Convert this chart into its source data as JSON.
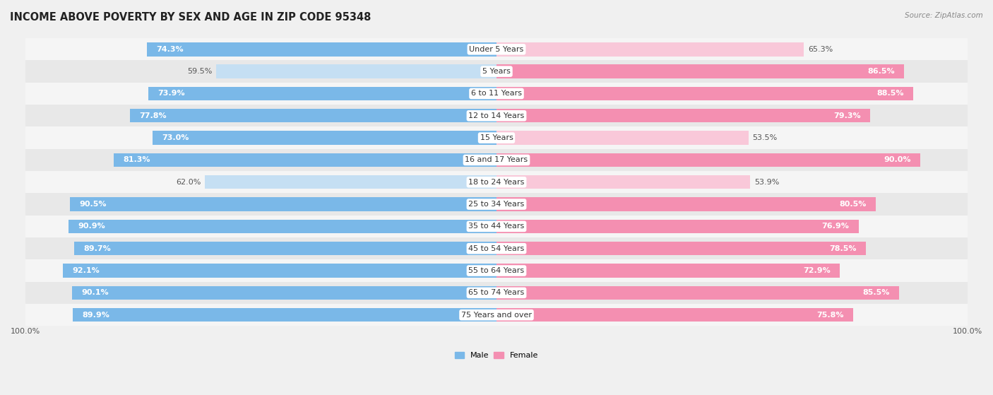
{
  "title": "INCOME ABOVE POVERTY BY SEX AND AGE IN ZIP CODE 95348",
  "source": "Source: ZipAtlas.com",
  "categories": [
    "Under 5 Years",
    "5 Years",
    "6 to 11 Years",
    "12 to 14 Years",
    "15 Years",
    "16 and 17 Years",
    "18 to 24 Years",
    "25 to 34 Years",
    "35 to 44 Years",
    "45 to 54 Years",
    "55 to 64 Years",
    "65 to 74 Years",
    "75 Years and over"
  ],
  "male_values": [
    74.3,
    59.5,
    73.9,
    77.8,
    73.0,
    81.3,
    62.0,
    90.5,
    90.9,
    89.7,
    92.1,
    90.1,
    89.9
  ],
  "female_values": [
    65.3,
    86.5,
    88.5,
    79.3,
    53.5,
    90.0,
    53.9,
    80.5,
    76.9,
    78.5,
    72.9,
    85.5,
    75.8
  ],
  "male_color_strong": "#7ab8e8",
  "male_color_light": "#c5dff3",
  "female_color_strong": "#f48fb1",
  "female_color_light": "#f9c8d9",
  "axis_max": 100.0,
  "bar_height": 0.62,
  "background_color": "#f0f0f0",
  "row_color_even": "#e8e8e8",
  "row_color_odd": "#f5f5f5",
  "title_fontsize": 10.5,
  "label_fontsize": 8.0,
  "tick_fontsize": 8,
  "source_fontsize": 7.5
}
